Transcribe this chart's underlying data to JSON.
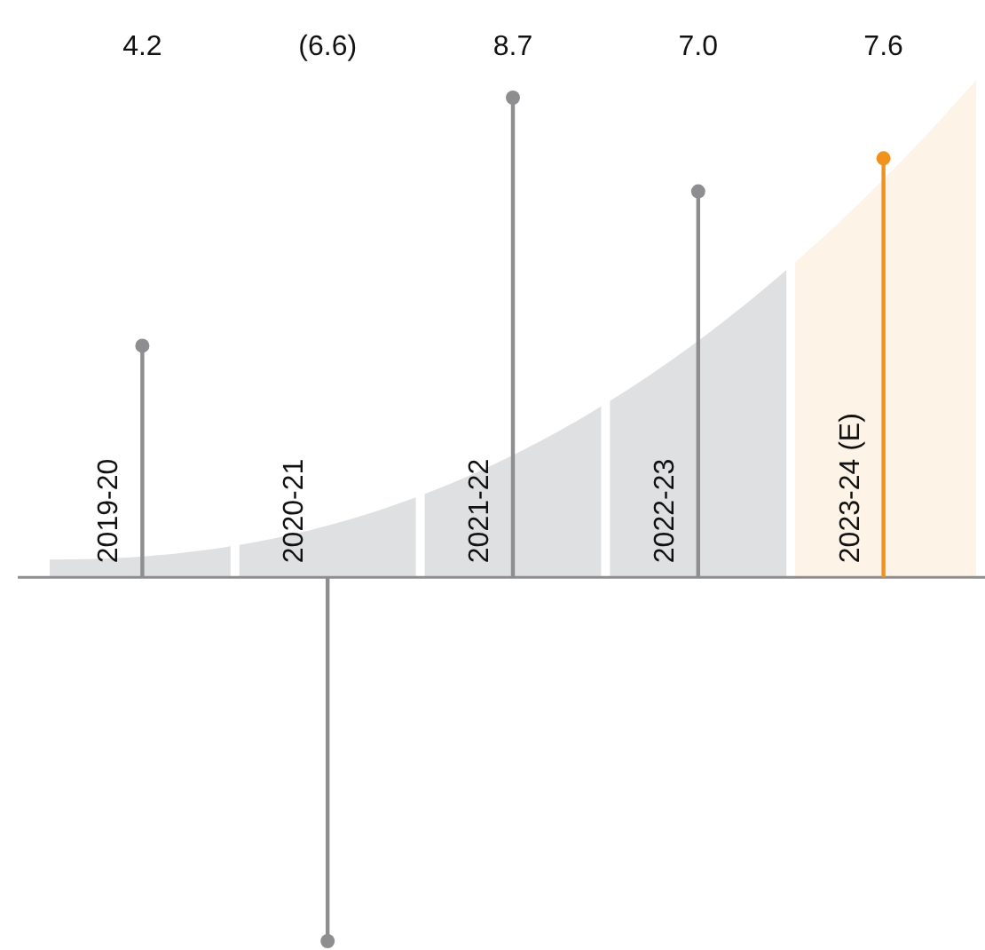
{
  "chart_data": {
    "type": "lollipop",
    "categories": [
      "2019-20",
      "2020-21",
      "2021-22",
      "2022-23",
      "2023-24 (E)"
    ],
    "values": [
      4.2,
      -6.6,
      8.7,
      7.0,
      7.6
    ],
    "colors": [
      "#8e8e91",
      "#8e8e91",
      "#8e8e91",
      "#8e8e91",
      "#f0921c"
    ],
    "value_labels": [
      "4.2",
      "(6.6)",
      "8.7",
      "7.0",
      "7.6"
    ],
    "marker": "circle"
  }
}
